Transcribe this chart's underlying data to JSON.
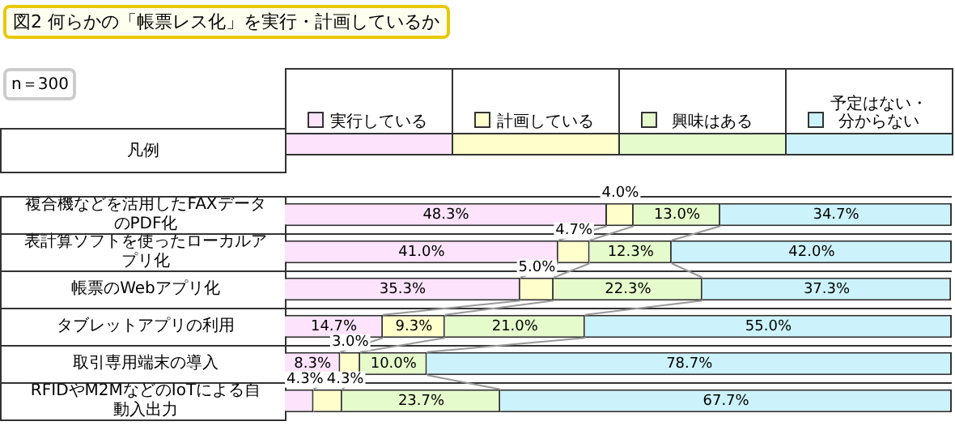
{
  "chart_data": {
    "type": "bar",
    "orientation": "horizontal",
    "stacked": true,
    "title": "図2 何らかの「帳票レス化」を実行・計画しているか",
    "annotations": [
      "n＝300"
    ],
    "legend": "top",
    "legend_title": "凡例",
    "categories": [
      "複合機などを活用したFAXデータのPDF化",
      "表計算ソフトを使ったローカルアプリ化",
      "帳票のWebアプリ化",
      "タブレットアプリの利用",
      "取引専用端末の導入",
      "RFIDやM2MなどのIoTによる自動入出力"
    ],
    "series": [
      {
        "name": "実行している",
        "color": "#fde3fb",
        "values": [
          48.3,
          41.0,
          35.3,
          14.7,
          8.3,
          4.3
        ],
        "value_labels": [
          "48.3%",
          "41.0%",
          "35.3%",
          "14.7%",
          "8.3%",
          "4.3%"
        ]
      },
      {
        "name": "計画している",
        "color": "#ffffcc",
        "values": [
          4.0,
          4.7,
          5.0,
          9.3,
          3.0,
          4.3
        ],
        "value_labels": [
          "4.0%",
          "4.7%",
          "5.0%",
          "9.3%",
          "3.0%",
          "4.3%"
        ]
      },
      {
        "name": "興味はある",
        "color": "#e6fbcc",
        "values": [
          13.0,
          12.3,
          22.3,
          21.0,
          10.0,
          23.7
        ],
        "value_labels": [
          "13.0%",
          "12.3%",
          "22.3%",
          "21.0%",
          "10.0%",
          "23.7%"
        ]
      },
      {
        "name": "予定はない・分からない",
        "color": "#ccf3fc",
        "values": [
          34.7,
          42.0,
          37.3,
          55.0,
          78.7,
          67.7
        ],
        "value_labels": [
          "34.7%",
          "42.0%",
          "37.3%",
          "55.0%",
          "78.7%",
          "67.7%"
        ]
      }
    ]
  }
}
